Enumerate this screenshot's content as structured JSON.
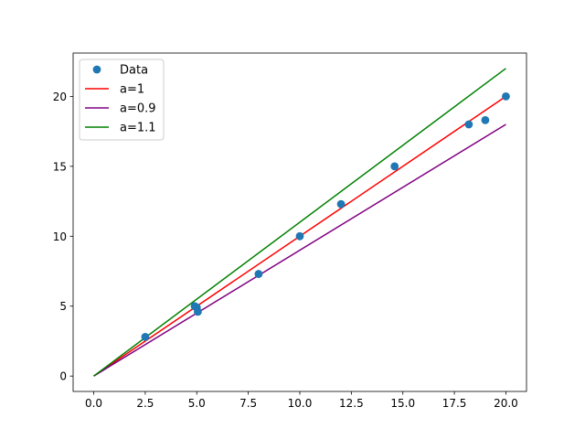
{
  "chart_data": {
    "type": "scatter",
    "title": "",
    "xlabel": "",
    "ylabel": "",
    "xlim": [
      -1.0,
      21.0
    ],
    "ylim": [
      -1.1,
      23.1
    ],
    "x_ticks": [
      0.0,
      2.5,
      5.0,
      7.5,
      10.0,
      12.5,
      15.0,
      17.5,
      20.0
    ],
    "x_tick_labels": [
      "0.0",
      "2.5",
      "5.0",
      "7.5",
      "10.0",
      "12.5",
      "15.0",
      "17.5",
      "20.0"
    ],
    "y_ticks": [
      0,
      5,
      10,
      15,
      20
    ],
    "y_tick_labels": [
      "0",
      "5",
      "10",
      "15",
      "20"
    ],
    "grid": false,
    "legend_position": "top-left",
    "series": [
      {
        "name": "Data",
        "kind": "scatter",
        "color": "#1f77b4",
        "x": [
          2.5,
          4.9,
          5.0,
          5.05,
          8.0,
          10.0,
          12.0,
          14.6,
          18.2,
          19.0,
          20.0
        ],
        "y": [
          2.8,
          5.0,
          4.9,
          4.6,
          7.3,
          10.0,
          12.3,
          15.0,
          18.0,
          18.3,
          20.0
        ]
      },
      {
        "name": "a=1",
        "kind": "line",
        "color": "#ff0000",
        "x": [
          0,
          20
        ],
        "y": [
          0,
          20
        ]
      },
      {
        "name": "a=0.9",
        "kind": "line",
        "color": "#800080",
        "x": [
          0,
          20
        ],
        "y": [
          0,
          18
        ]
      },
      {
        "name": "a=1.1",
        "kind": "line",
        "color": "#008000",
        "x": [
          0,
          20
        ],
        "y": [
          0,
          22
        ]
      }
    ]
  }
}
